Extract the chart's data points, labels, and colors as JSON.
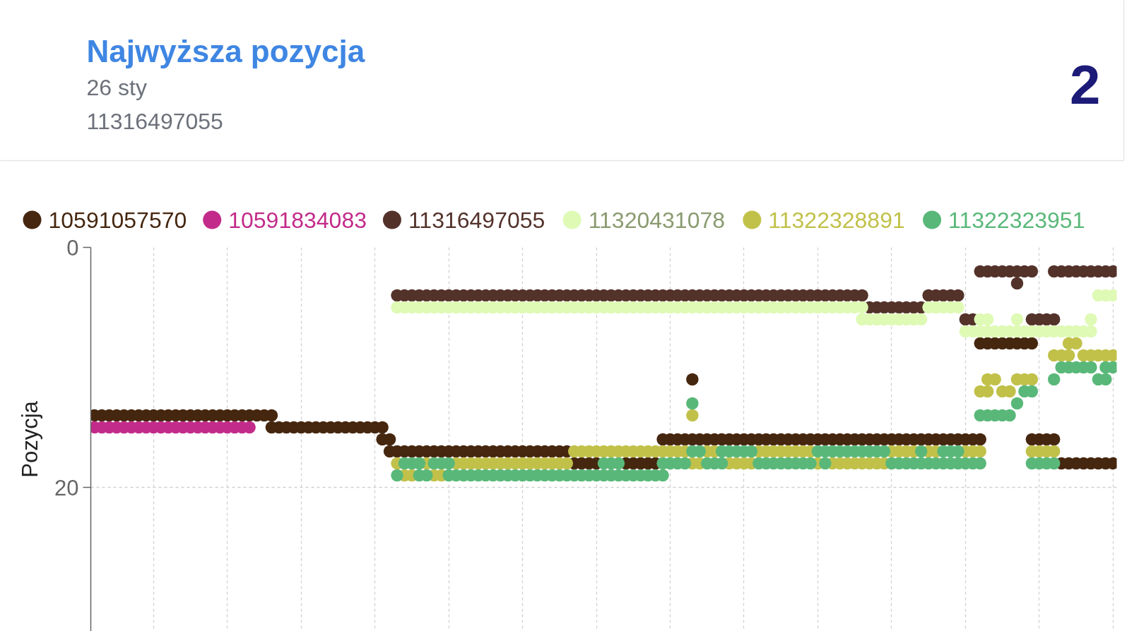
{
  "chart_data": [
    {
      "type": "other",
      "title": "Najwyższa pozycja",
      "subtitle": "26 sty",
      "annotations": [
        "11316497055",
        "2"
      ]
    },
    {
      "type": "scatter",
      "ylabel": "Pozycja",
      "marker": "circle",
      "grid": true,
      "legend": "top",
      "tick_labels": "y",
      "ylim": [
        32,
        0
      ],
      "yticks": [
        0,
        20
      ],
      "categories": [
        null,
        null,
        null,
        null,
        null,
        null,
        null,
        null,
        null,
        null,
        null,
        null,
        null,
        null,
        null,
        null,
        null,
        null,
        null,
        null,
        null,
        null,
        null,
        null,
        null,
        null,
        null,
        null,
        null,
        null,
        null,
        null,
        null,
        null,
        null,
        null,
        null,
        null,
        null,
        null,
        null,
        null,
        null,
        null,
        null,
        null,
        null,
        null,
        null,
        null,
        null,
        null,
        null,
        null,
        null,
        null,
        null,
        null,
        null,
        null,
        null,
        null,
        null,
        null,
        null,
        null,
        null,
        null,
        null,
        null,
        null,
        null,
        null,
        null,
        null,
        null,
        null,
        null,
        null,
        null,
        null,
        null,
        null,
        null,
        null,
        null,
        null,
        null,
        null,
        null,
        null,
        null,
        null,
        null,
        null,
        null,
        null,
        null,
        null,
        null,
        null,
        null,
        null,
        null,
        null,
        null,
        null,
        null,
        null,
        null,
        null,
        null,
        null,
        null,
        null,
        null,
        null,
        null,
        null,
        null,
        null,
        null,
        null,
        null,
        null,
        null,
        null,
        null,
        null,
        null,
        null,
        null,
        null,
        null,
        null,
        null,
        null,
        null,
        null
      ],
      "series": [
        {
          "name": "10591057570",
          "color": "#45260f",
          "values": [
            14,
            14,
            14,
            14,
            14,
            14,
            14,
            14,
            14,
            14,
            14,
            14,
            14,
            14,
            14,
            14,
            14,
            14,
            14,
            14,
            14,
            14,
            14,
            14,
            14,
            15,
            15,
            15,
            15,
            15,
            15,
            15,
            15,
            15,
            15,
            15,
            15,
            15,
            15,
            15,
            16,
            17,
            17,
            17,
            17,
            17,
            17,
            17,
            17,
            17,
            17,
            17,
            17,
            17,
            17,
            17,
            17,
            17,
            17,
            17,
            17,
            17,
            17,
            17,
            17,
            18,
            18,
            18,
            18,
            null,
            null,
            null,
            18,
            18,
            18,
            18,
            18,
            16,
            16,
            16,
            16,
            16,
            16,
            16,
            16,
            16,
            16,
            16,
            16,
            16,
            16,
            16,
            16,
            16,
            16,
            16,
            16,
            16,
            16,
            16,
            16,
            16,
            16,
            16,
            16,
            16,
            16,
            16,
            16,
            16,
            16,
            16,
            16,
            16,
            16,
            16,
            16,
            16,
            16,
            16,
            16,
            8,
            8,
            8,
            8,
            8,
            8,
            8,
            16,
            16,
            16,
            18,
            18,
            18,
            18,
            18,
            18,
            18,
            18
          ]
        },
        {
          "color": "#45260f",
          "values": [
            null,
            null,
            null,
            null,
            null,
            null,
            null,
            null,
            null,
            null,
            null,
            null,
            null,
            null,
            null,
            null,
            null,
            null,
            null,
            null,
            null,
            null,
            null,
            null,
            15,
            null,
            null,
            null,
            null,
            null,
            null,
            null,
            null,
            null,
            null,
            null,
            null,
            null,
            null,
            16,
            17,
            null,
            null,
            null,
            null,
            null,
            null,
            null,
            null,
            null,
            null,
            null,
            null,
            null,
            null,
            null,
            null,
            null,
            null,
            null,
            null,
            null,
            null,
            null,
            null,
            null,
            null,
            null,
            null,
            null,
            null,
            null,
            null,
            null,
            null,
            null,
            null,
            null,
            null,
            null,
            null,
            11,
            null,
            null,
            null,
            null,
            null,
            null,
            null,
            null,
            null,
            null,
            null,
            null,
            null,
            null,
            null,
            null,
            null,
            null,
            null,
            null,
            null,
            null,
            null,
            null,
            null,
            null,
            null,
            null,
            null,
            null,
            null,
            null,
            null,
            null,
            null,
            null,
            null,
            null,
            8,
            null,
            null,
            null,
            null,
            null,
            null,
            16,
            null,
            null,
            null,
            null,
            null,
            null,
            null,
            null,
            null,
            null,
            null
          ]
        },
        {
          "name": "10591834083",
          "color": "#c22b89",
          "values": [
            15,
            15,
            15,
            15,
            15,
            15,
            15,
            15,
            15,
            15,
            15,
            15,
            15,
            15,
            15,
            15,
            15,
            15,
            15,
            15,
            15,
            15,
            null,
            null,
            null,
            null,
            null,
            null,
            null,
            null,
            null,
            null,
            null,
            null,
            null,
            null,
            null,
            null,
            null,
            null,
            null,
            null,
            null,
            null,
            null,
            null,
            null,
            null,
            null,
            null,
            null,
            null,
            null,
            null,
            null,
            null,
            null,
            null,
            null,
            null,
            null,
            null,
            null,
            null,
            null,
            null,
            null,
            null,
            null,
            null,
            null,
            null,
            null,
            null,
            null,
            null,
            null,
            null,
            null,
            null,
            null,
            null,
            null,
            null,
            null,
            null,
            null,
            null,
            null,
            null,
            null,
            null,
            null,
            null,
            null,
            null,
            null,
            null,
            null,
            null,
            null,
            null,
            null,
            null,
            null,
            null,
            null,
            null,
            null,
            null,
            null,
            null,
            null,
            null,
            null,
            null,
            null,
            null,
            null,
            null,
            null,
            null,
            null,
            null,
            null,
            null,
            null,
            null,
            null,
            null,
            null,
            null,
            null,
            null,
            null,
            null,
            null,
            null,
            null
          ]
        },
        {
          "name": "11316497055",
          "color": "#53322a",
          "values": [
            null,
            null,
            null,
            null,
            null,
            null,
            null,
            null,
            null,
            null,
            null,
            null,
            null,
            null,
            null,
            null,
            null,
            null,
            null,
            null,
            null,
            null,
            null,
            null,
            null,
            null,
            null,
            null,
            null,
            null,
            null,
            null,
            null,
            null,
            null,
            null,
            null,
            null,
            null,
            null,
            null,
            4,
            4,
            4,
            4,
            4,
            4,
            4,
            4,
            4,
            4,
            4,
            4,
            4,
            4,
            4,
            4,
            4,
            4,
            4,
            4,
            4,
            4,
            4,
            4,
            4,
            4,
            4,
            4,
            4,
            4,
            4,
            4,
            4,
            4,
            4,
            4,
            4,
            4,
            4,
            4,
            4,
            4,
            4,
            4,
            4,
            4,
            4,
            4,
            4,
            4,
            4,
            4,
            4,
            4,
            4,
            4,
            4,
            4,
            4,
            4,
            4,
            4,
            4,
            4,
            5,
            5,
            5,
            5,
            5,
            5,
            5,
            5,
            4,
            4,
            4,
            4,
            4,
            6,
            6,
            2,
            2,
            2,
            2,
            2,
            2,
            2,
            2,
            6,
            6,
            6,
            2,
            2,
            2,
            2,
            2,
            2,
            2,
            2
          ]
        },
        {
          "color": "#53322a",
          "values": [
            null,
            null,
            null,
            null,
            null,
            null,
            null,
            null,
            null,
            null,
            null,
            null,
            null,
            null,
            null,
            null,
            null,
            null,
            null,
            null,
            null,
            null,
            null,
            null,
            null,
            null,
            null,
            null,
            null,
            null,
            null,
            null,
            null,
            null,
            null,
            null,
            null,
            null,
            null,
            null,
            null,
            null,
            null,
            null,
            null,
            null,
            null,
            null,
            null,
            null,
            null,
            null,
            null,
            null,
            null,
            null,
            null,
            null,
            null,
            null,
            null,
            null,
            null,
            null,
            null,
            null,
            null,
            null,
            null,
            null,
            null,
            null,
            null,
            null,
            null,
            null,
            null,
            null,
            null,
            null,
            null,
            null,
            null,
            null,
            null,
            null,
            null,
            null,
            null,
            null,
            null,
            null,
            null,
            null,
            null,
            null,
            null,
            null,
            null,
            null,
            null,
            null,
            null,
            null,
            null,
            null,
            null,
            null,
            null,
            null,
            null,
            null,
            null,
            null,
            null,
            null,
            null,
            null,
            null,
            null,
            null,
            null,
            null,
            null,
            null,
            3,
            null,
            6,
            null,
            null,
            2,
            null,
            null,
            null,
            null,
            null,
            null,
            null,
            null
          ]
        },
        {
          "name": "11320431078",
          "color": "#dffab5",
          "values": [
            null,
            null,
            null,
            null,
            null,
            null,
            null,
            null,
            null,
            null,
            null,
            null,
            null,
            null,
            null,
            null,
            null,
            null,
            null,
            null,
            null,
            null,
            null,
            null,
            null,
            null,
            null,
            null,
            null,
            null,
            null,
            null,
            null,
            null,
            null,
            null,
            null,
            null,
            null,
            null,
            null,
            5,
            5,
            5,
            5,
            5,
            5,
            5,
            5,
            5,
            5,
            5,
            5,
            5,
            5,
            5,
            5,
            5,
            5,
            5,
            5,
            5,
            5,
            5,
            5,
            5,
            5,
            5,
            5,
            5,
            5,
            5,
            5,
            5,
            5,
            5,
            5,
            5,
            5,
            5,
            5,
            5,
            5,
            5,
            5,
            5,
            5,
            5,
            5,
            5,
            5,
            5,
            5,
            5,
            5,
            5,
            5,
            5,
            5,
            5,
            5,
            5,
            5,
            5,
            5,
            6,
            6,
            6,
            6,
            6,
            6,
            6,
            6,
            5,
            5,
            5,
            5,
            5,
            7,
            7,
            7,
            7,
            7,
            7,
            7,
            7,
            7,
            7,
            7,
            7,
            7,
            7,
            7,
            7,
            7,
            7,
            4,
            4,
            4
          ]
        },
        {
          "color": "#dffab5",
          "values": [
            null,
            null,
            null,
            null,
            null,
            null,
            null,
            null,
            null,
            null,
            null,
            null,
            null,
            null,
            null,
            null,
            null,
            null,
            null,
            null,
            null,
            null,
            null,
            null,
            null,
            null,
            null,
            null,
            null,
            null,
            null,
            null,
            null,
            null,
            null,
            null,
            null,
            null,
            null,
            null,
            null,
            null,
            null,
            null,
            null,
            null,
            null,
            null,
            null,
            null,
            null,
            null,
            null,
            null,
            null,
            null,
            null,
            null,
            null,
            null,
            null,
            null,
            null,
            null,
            null,
            null,
            null,
            null,
            null,
            null,
            null,
            null,
            null,
            null,
            null,
            null,
            null,
            null,
            null,
            null,
            null,
            null,
            null,
            null,
            null,
            null,
            null,
            null,
            null,
            null,
            null,
            null,
            null,
            null,
            null,
            null,
            null,
            null,
            null,
            null,
            null,
            null,
            null,
            null,
            6,
            null,
            null,
            null,
            null,
            null,
            null,
            null,
            null,
            null,
            null,
            null,
            null,
            null,
            null,
            null,
            6,
            6,
            null,
            null,
            null,
            6,
            null,
            null,
            null,
            null,
            null,
            null,
            null,
            null,
            null,
            6,
            null,
            null,
            null
          ]
        },
        {
          "name": "11322328891",
          "color": "#c1c14a",
          "values": [
            null,
            null,
            null,
            null,
            null,
            null,
            null,
            null,
            null,
            null,
            null,
            null,
            null,
            null,
            null,
            null,
            null,
            null,
            null,
            null,
            null,
            null,
            null,
            null,
            null,
            null,
            null,
            null,
            null,
            null,
            null,
            null,
            null,
            null,
            null,
            null,
            null,
            null,
            null,
            null,
            null,
            18,
            19,
            19,
            null,
            18,
            19,
            19,
            null,
            18,
            18,
            18,
            18,
            18,
            18,
            18,
            18,
            18,
            18,
            18,
            18,
            18,
            18,
            18,
            18,
            17,
            17,
            17,
            17,
            17,
            17,
            17,
            17,
            17,
            17,
            17,
            17,
            17,
            17,
            17,
            17,
            18,
            18,
            17,
            17,
            null,
            18,
            18,
            18,
            18,
            17,
            17,
            17,
            17,
            17,
            17,
            17,
            17,
            18,
            null,
            18,
            18,
            18,
            18,
            18,
            18,
            18,
            18,
            17,
            17,
            17,
            17,
            null,
            17,
            17,
            null,
            null,
            null,
            17,
            17,
            17,
            11,
            11,
            12,
            12,
            11,
            11,
            11,
            17,
            17,
            17,
            9,
            9,
            8,
            9,
            9,
            9,
            9,
            9
          ]
        },
        {
          "color": "#c1c14a",
          "values": [
            null,
            null,
            null,
            null,
            null,
            null,
            null,
            null,
            null,
            null,
            null,
            null,
            null,
            null,
            null,
            null,
            null,
            null,
            null,
            null,
            null,
            null,
            null,
            null,
            null,
            null,
            null,
            null,
            null,
            null,
            null,
            null,
            null,
            null,
            null,
            null,
            null,
            null,
            null,
            null,
            null,
            null,
            null,
            null,
            null,
            null,
            null,
            null,
            null,
            null,
            null,
            null,
            null,
            null,
            null,
            null,
            null,
            null,
            null,
            null,
            null,
            null,
            null,
            null,
            null,
            null,
            null,
            null,
            null,
            null,
            null,
            null,
            null,
            null,
            null,
            null,
            null,
            null,
            null,
            null,
            null,
            14,
            null,
            null,
            null,
            null,
            null,
            null,
            null,
            null,
            null,
            null,
            null,
            null,
            null,
            null,
            null,
            null,
            null,
            null,
            null,
            null,
            null,
            null,
            null,
            null,
            null,
            null,
            null,
            null,
            null,
            null,
            null,
            null,
            null,
            null,
            null,
            null,
            null,
            null,
            12,
            12,
            null,
            null,
            null,
            null,
            null,
            17,
            null,
            null,
            9,
            null,
            8,
            null,
            null,
            null,
            null,
            null,
            null
          ]
        },
        {
          "name": "11322323951",
          "color": "#59b879",
          "values": [
            null,
            null,
            null,
            null,
            null,
            null,
            null,
            null,
            null,
            null,
            null,
            null,
            null,
            null,
            null,
            null,
            null,
            null,
            null,
            null,
            null,
            null,
            null,
            null,
            null,
            null,
            null,
            null,
            null,
            null,
            null,
            null,
            null,
            null,
            null,
            null,
            null,
            null,
            null,
            null,
            null,
            19,
            18,
            18,
            18,
            19,
            18,
            18,
            18,
            19,
            19,
            19,
            19,
            19,
            19,
            19,
            19,
            19,
            19,
            19,
            19,
            19,
            19,
            19,
            19,
            19,
            19,
            19,
            19,
            19,
            19,
            19,
            19,
            19,
            19,
            19,
            19,
            19,
            18,
            18,
            18,
            17,
            17,
            18,
            18,
            18,
            17,
            17,
            17,
            17,
            18,
            18,
            18,
            18,
            18,
            18,
            18,
            18,
            17,
            17,
            17,
            17,
            17,
            17,
            17,
            17,
            17,
            17,
            18,
            18,
            18,
            18,
            18,
            18,
            18,
            18,
            18,
            18,
            18,
            18,
            18,
            14,
            14,
            14,
            14,
            13,
            12,
            12,
            18,
            18,
            18,
            10,
            10,
            10,
            10,
            10,
            11,
            11,
            10
          ]
        },
        {
          "color": "#59b879",
          "values": [
            null,
            null,
            null,
            null,
            null,
            null,
            null,
            null,
            null,
            null,
            null,
            null,
            null,
            null,
            null,
            null,
            null,
            null,
            null,
            null,
            null,
            null,
            null,
            null,
            null,
            null,
            null,
            null,
            null,
            null,
            null,
            null,
            null,
            null,
            null,
            null,
            null,
            null,
            null,
            null,
            null,
            null,
            null,
            null,
            19,
            null,
            null,
            null,
            19,
            null,
            null,
            null,
            null,
            null,
            null,
            null,
            null,
            null,
            null,
            null,
            null,
            null,
            null,
            null,
            null,
            null,
            null,
            null,
            null,
            18,
            18,
            18,
            null,
            null,
            null,
            null,
            null,
            18,
            null,
            null,
            null,
            13,
            null,
            null,
            null,
            17,
            null,
            null,
            null,
            null,
            null,
            null,
            null,
            null,
            null,
            null,
            null,
            null,
            null,
            18,
            null,
            null,
            null,
            null,
            null,
            null,
            null,
            null,
            null,
            null,
            null,
            null,
            17,
            null,
            null,
            17,
            17,
            17,
            null,
            null,
            14,
            null,
            null,
            null,
            null,
            null,
            null,
            18,
            null,
            null,
            11,
            null,
            null,
            null,
            null,
            null,
            null,
            10,
            null
          ]
        }
      ]
    }
  ]
}
